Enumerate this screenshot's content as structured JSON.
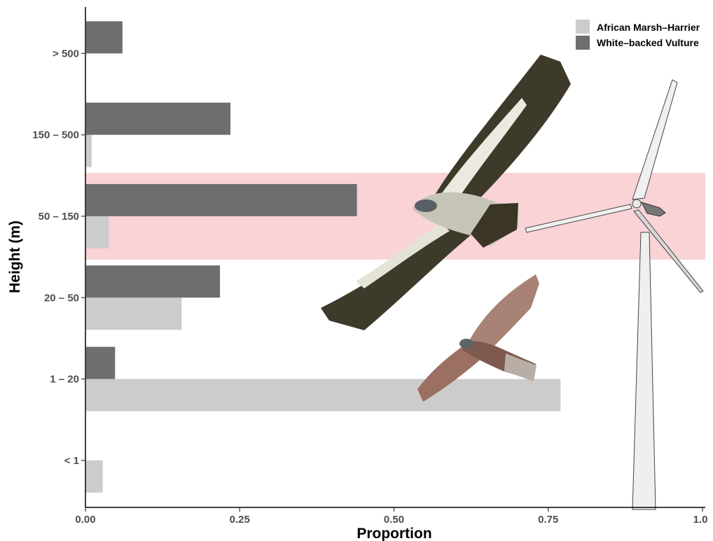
{
  "chart_data": {
    "type": "bar",
    "orientation": "horizontal",
    "categories": [
      "< 1",
      "1 – 20",
      "20 – 50",
      "50 – 150",
      "150 – 500",
      "> 500"
    ],
    "series": [
      {
        "name": "African Marsh–Harrier",
        "color": "#cccccc",
        "values": [
          0.028,
          0.77,
          0.156,
          0.038,
          0.01,
          0
        ]
      },
      {
        "name": "White–backed Vulture",
        "color": "#6e6e6e",
        "values": [
          0,
          0.048,
          0.218,
          0.44,
          0.235,
          0.06
        ]
      }
    ],
    "xlabel": "Proportion",
    "ylabel": "Height (m)",
    "xlim": [
      0,
      1.0
    ],
    "xticks": [
      "0.00",
      "0.25",
      "0.50",
      "0.75",
      "1.0"
    ],
    "grid": false,
    "legend_position": "top-right",
    "highlight_band": {
      "category": "50 – 150",
      "color": "#f9d3d6"
    },
    "illustrations": [
      "white-backed-vulture",
      "african-marsh-harrier",
      "wind-turbine"
    ]
  }
}
